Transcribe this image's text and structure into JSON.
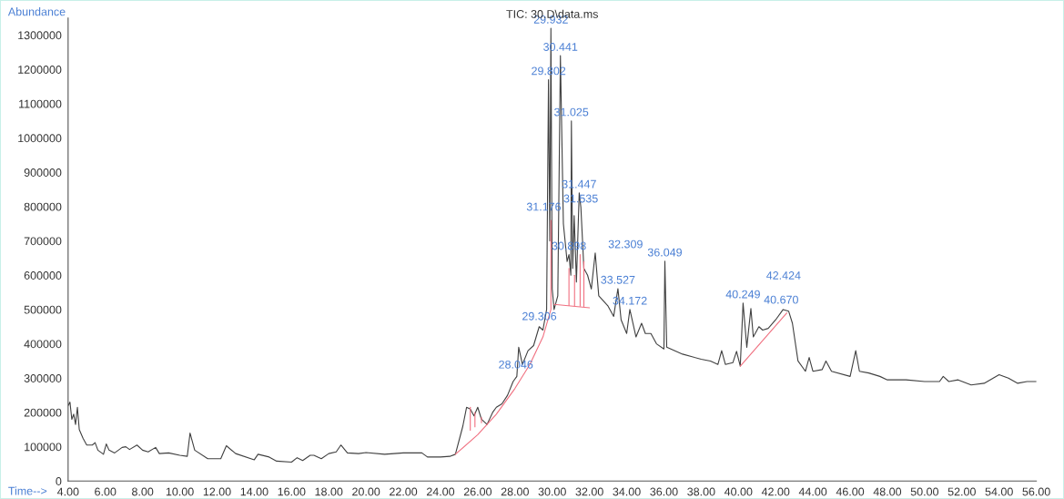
{
  "chart_data": {
    "type": "line",
    "title": "TIC: 30.D\\data.ms",
    "xlabel": "Time-->",
    "ylabel": "Abundance",
    "xlim": [
      4,
      56
    ],
    "ylim": [
      0,
      1350000
    ],
    "xticks": [
      {
        "value": 4,
        "label": "4.00"
      },
      {
        "value": 6,
        "label": "6.00"
      },
      {
        "value": 8,
        "label": "8.00"
      },
      {
        "value": 10,
        "label": "10.00"
      },
      {
        "value": 12,
        "label": "12.00"
      },
      {
        "value": 14,
        "label": "14.00"
      },
      {
        "value": 16,
        "label": "16.00"
      },
      {
        "value": 18,
        "label": "18.00"
      },
      {
        "value": 20,
        "label": "20.00"
      },
      {
        "value": 22,
        "label": "22.00"
      },
      {
        "value": 24,
        "label": "24.00"
      },
      {
        "value": 26,
        "label": "26.00"
      },
      {
        "value": 28,
        "label": "28.00"
      },
      {
        "value": 30,
        "label": "30.00"
      },
      {
        "value": 32,
        "label": "32.00"
      },
      {
        "value": 34,
        "label": "34.00"
      },
      {
        "value": 36,
        "label": "36.00"
      },
      {
        "value": 38,
        "label": "38.00"
      },
      {
        "value": 40,
        "label": "40.00"
      },
      {
        "value": 42,
        "label": "42.00"
      },
      {
        "value": 44,
        "label": "44.00"
      },
      {
        "value": 46,
        "label": "46.00"
      },
      {
        "value": 48,
        "label": "48.00"
      },
      {
        "value": 50,
        "label": "50.00"
      },
      {
        "value": 52,
        "label": "52.00"
      },
      {
        "value": 54,
        "label": "54.00"
      },
      {
        "value": 56,
        "label": "56.00"
      }
    ],
    "yticks": [
      0,
      100000,
      200000,
      300000,
      400000,
      500000,
      600000,
      700000,
      800000,
      900000,
      1000000,
      1100000,
      1200000,
      1300000
    ],
    "series": [
      {
        "color": "#404040",
        "x": [
          4.0,
          4.1,
          4.2,
          4.3,
          4.4,
          4.5,
          4.6,
          4.8,
          5.0,
          5.3,
          5.45,
          5.6,
          5.9,
          6.05,
          6.2,
          6.5,
          6.9,
          7.1,
          7.3,
          7.7,
          8.0,
          8.3,
          8.7,
          8.9,
          9.4,
          10.0,
          10.4,
          10.55,
          10.8,
          11.5,
          12.2,
          12.5,
          13.0,
          14.0,
          14.2,
          14.8,
          15.2,
          16.0,
          16.3,
          16.6,
          17.0,
          17.2,
          17.6,
          18.0,
          18.4,
          18.65,
          19.0,
          19.6,
          20.0,
          21.0,
          22.0,
          23.0,
          23.3,
          24.0,
          24.5,
          24.8,
          25.2,
          25.4,
          25.6,
          25.8,
          26.0,
          26.2,
          26.5,
          26.8,
          27.0,
          27.3,
          27.6,
          27.9,
          28.1,
          28.2,
          28.4,
          28.7,
          29.0,
          29.3,
          29.5,
          29.7,
          29.8,
          29.87,
          29.93,
          30.0,
          30.1,
          30.3,
          30.44,
          30.6,
          30.8,
          30.9,
          31.0,
          31.03,
          31.1,
          31.18,
          31.3,
          31.45,
          31.54,
          31.7,
          31.9,
          32.1,
          32.31,
          32.5,
          33.0,
          33.3,
          33.53,
          33.7,
          34.0,
          34.17,
          34.5,
          34.8,
          35.0,
          35.3,
          35.6,
          36.0,
          36.05,
          36.15,
          37.0,
          38.0,
          38.5,
          38.9,
          39.1,
          39.3,
          39.7,
          39.9,
          40.1,
          40.25,
          40.45,
          40.67,
          40.8,
          41.1,
          41.3,
          41.6,
          42.0,
          42.4,
          42.7,
          42.9,
          43.2,
          43.6,
          43.8,
          44.0,
          44.5,
          44.7,
          45.0,
          46.0,
          46.3,
          46.5,
          47.0,
          47.6,
          48.0,
          49.0,
          50.0,
          50.8,
          51.0,
          51.3,
          51.8,
          52.5,
          53.2,
          54.0,
          54.5,
          55.0,
          55.5,
          56.0
        ],
        "values": [
          220000,
          230000,
          180000,
          195000,
          165000,
          215000,
          150000,
          125000,
          105000,
          105000,
          112000,
          90000,
          78000,
          108000,
          90000,
          82000,
          98000,
          100000,
          92000,
          105000,
          90000,
          85000,
          98000,
          80000,
          82000,
          75000,
          72000,
          140000,
          90000,
          65000,
          65000,
          103000,
          80000,
          62000,
          78000,
          70000,
          58000,
          55000,
          68000,
          60000,
          75000,
          75000,
          65000,
          80000,
          85000,
          105000,
          82000,
          80000,
          83000,
          78000,
          82000,
          82000,
          70000,
          70000,
          72000,
          78000,
          160000,
          215000,
          210000,
          190000,
          215000,
          180000,
          165000,
          200000,
          215000,
          225000,
          250000,
          290000,
          305000,
          390000,
          340000,
          380000,
          395000,
          450000,
          440000,
          500000,
          1170000,
          700000,
          1320000,
          560000,
          500000,
          540000,
          1240000,
          750000,
          640000,
          660000,
          600000,
          1050000,
          620000,
          774000,
          580000,
          840000,
          798000,
          620000,
          600000,
          560000,
          665000,
          540000,
          510000,
          480000,
          561000,
          470000,
          430000,
          500000,
          420000,
          460000,
          430000,
          430000,
          400000,
          385000,
          641000,
          390000,
          370000,
          355000,
          350000,
          340000,
          380000,
          340000,
          345000,
          378000,
          335000,
          519000,
          390000,
          503000,
          420000,
          450000,
          440000,
          445000,
          470000,
          500000,
          495000,
          460000,
          350000,
          320000,
          360000,
          320000,
          325000,
          350000,
          320000,
          305000,
          380000,
          320000,
          315000,
          305000,
          295000,
          295000,
          290000,
          290000,
          305000,
          290000,
          295000,
          280000,
          285000,
          310000,
          300000,
          285000,
          290000,
          290000
        ]
      },
      {
        "color": "#f07080",
        "x": [
          24.8,
          26.0,
          27.0,
          28.0,
          28.8,
          29.5,
          29.93,
          29.93
        ],
        "values": [
          78000,
          135000,
          195000,
          270000,
          340000,
          420000,
          500000,
          760000
        ]
      },
      {
        "color": "#f07080",
        "x": [
          30.1,
          32.0
        ],
        "values": [
          515000,
          505000
        ]
      },
      {
        "color": "#f07080",
        "x": [
          40.1,
          42.6
        ],
        "values": [
          335000,
          490000
        ]
      },
      {
        "color": "#f07080",
        "x": [
          25.6,
          25.6
        ],
        "values": [
          148000,
          215000
        ]
      },
      {
        "color": "#f07080",
        "x": [
          25.85,
          25.85
        ],
        "values": [
          158000,
          200000
        ]
      },
      {
        "color": "#f07080",
        "x": [
          26.2,
          26.2
        ],
        "values": [
          170000,
          185000
        ]
      },
      {
        "color": "#f07080",
        "x": [
          30.9,
          30.9
        ],
        "values": [
          512000,
          620000
        ]
      },
      {
        "color": "#f07080",
        "x": [
          31.2,
          31.2
        ],
        "values": [
          511000,
          600000
        ]
      },
      {
        "color": "#f07080",
        "x": [
          31.5,
          31.5
        ],
        "values": [
          510000,
          660000
        ]
      },
      {
        "color": "#f07080",
        "x": [
          31.7,
          31.7
        ],
        "values": [
          509000,
          640000
        ]
      }
    ],
    "annotations": [
      {
        "text": "29.932",
        "x": 29.932,
        "y": 1320000
      },
      {
        "text": "30.441",
        "x": 30.441,
        "y": 1240000
      },
      {
        "text": "29.802",
        "x": 29.802,
        "y": 1170000
      },
      {
        "text": "31.025",
        "x": 31.025,
        "y": 1050000
      },
      {
        "text": "31.447",
        "x": 31.447,
        "y": 840000
      },
      {
        "text": "31.535",
        "x": 31.535,
        "y": 798000
      },
      {
        "text": "31.176",
        "x": 31.176,
        "y": 774000
      },
      {
        "text": "30.898",
        "x": 30.898,
        "y": 660000
      },
      {
        "text": "32.309",
        "x": 32.309,
        "y": 665000
      },
      {
        "text": "33.527",
        "x": 33.527,
        "y": 561000
      },
      {
        "text": "34.172",
        "x": 34.172,
        "y": 500000
      },
      {
        "text": "36.049",
        "x": 36.049,
        "y": 641000
      },
      {
        "text": "40.249",
        "x": 40.249,
        "y": 519000
      },
      {
        "text": "40.670",
        "x": 40.67,
        "y": 503000
      },
      {
        "text": "42.424",
        "x": 42.424,
        "y": 500000
      },
      {
        "text": "29.306",
        "x": 29.306,
        "y": 455000
      },
      {
        "text": "28.046",
        "x": 28.046,
        "y": 314000
      }
    ]
  }
}
